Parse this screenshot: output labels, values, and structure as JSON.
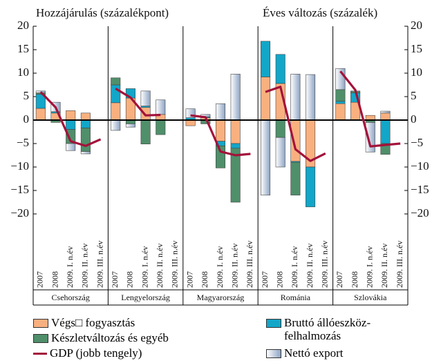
{
  "chart_data": {
    "type": "bar",
    "title": "Hozzájárulás (százalékpont)",
    "y2_title": "Éves változás (százalék)",
    "stacked": true,
    "groups": [
      "Csehország",
      "Lengyelország",
      "Magyarország",
      "Románia",
      "Szlovákia"
    ],
    "categories": [
      "2007",
      "2008",
      "2009. I. n.év",
      "2009. II. n.év",
      "2009. III. n.év"
    ],
    "ylim": [
      -20,
      20
    ],
    "yticks": [
      {
        "value": -20,
        "label": "−20"
      },
      {
        "value": -15,
        "label": "−15"
      },
      {
        "value": -10,
        "label": "−10"
      },
      {
        "value": -5,
        "label": "−5"
      },
      0,
      5,
      10,
      15,
      20
    ],
    "y2lim": [
      -20,
      20
    ],
    "y2ticks": [
      {
        "value": -20,
        "label": "−20"
      },
      {
        "value": -15,
        "label": "−15"
      },
      {
        "value": -10,
        "label": "−10"
      },
      {
        "value": -5,
        "label": "−5"
      },
      0,
      5,
      10,
      15,
      20
    ],
    "series": [
      {
        "name": "Végs□ fogyasztás",
        "color": "#f9b07f",
        "values": [
          [
            2.5,
            1.5,
            2.0,
            1.5,
            null
          ],
          [
            3.7,
            4.7,
            2.7,
            1.2,
            null
          ],
          [
            -1.2,
            0.5,
            -4.5,
            -5.0,
            null
          ],
          [
            9.2,
            7.8,
            -8.8,
            -10.0,
            null
          ],
          [
            3.5,
            3.8,
            1.0,
            1.5,
            null
          ]
        ]
      },
      {
        "name": "Bruttó állóeszköz-felhalmozás",
        "color": "#12a6c8",
        "values": [
          [
            3.0,
            0.3,
            -2.0,
            -1.7,
            null
          ],
          [
            3.8,
            2.0,
            0.3,
            0,
            null
          ],
          [
            0.5,
            0.2,
            -1.0,
            -1.0,
            null
          ],
          [
            7.6,
            6.2,
            -0.2,
            -8.5,
            null
          ],
          [
            0.5,
            2.0,
            0,
            -5.0,
            null
          ]
        ]
      },
      {
        "name": "Készletváltozás és egyéb",
        "color": "#4f8f6a",
        "values": [
          [
            0.3,
            -0.5,
            -3.0,
            -5.0,
            null
          ],
          [
            1.5,
            -0.8,
            -5.1,
            -3.1,
            null
          ],
          [
            0,
            -0.8,
            -4.7,
            -11.5,
            null
          ],
          [
            0,
            -3.7,
            -7.0,
            0,
            null
          ],
          [
            2.5,
            0.4,
            -0.5,
            -2.3,
            null
          ]
        ]
      },
      {
        "name": "Nettó export",
        "color": "#c3d0e2",
        "values": [
          [
            0.4,
            2.0,
            -1.5,
            -0.5,
            null
          ],
          [
            -2.2,
            -0.7,
            3.2,
            3.1,
            null
          ],
          [
            1.9,
            0.5,
            3.5,
            9.8,
            null
          ],
          [
            -16.0,
            -6.3,
            9.8,
            9.7,
            null
          ],
          [
            4.5,
            0,
            -6.3,
            0.4,
            null
          ]
        ]
      },
      {
        "name": "GDP (jobb tengely)",
        "color": "#a3123a",
        "type": "line",
        "axis": "y2",
        "values": [
          [
            6.0,
            2.7,
            -4.5,
            -5.5,
            -4.1
          ],
          [
            6.7,
            4.8,
            1.0,
            1.1,
            null
          ],
          [
            1.0,
            0.6,
            -6.7,
            -7.5,
            -7.2
          ],
          [
            6.0,
            7.1,
            -6.2,
            -8.7,
            -7.1
          ],
          [
            10.4,
            6.4,
            -5.6,
            -5.3,
            -5.0
          ]
        ]
      }
    ]
  }
}
